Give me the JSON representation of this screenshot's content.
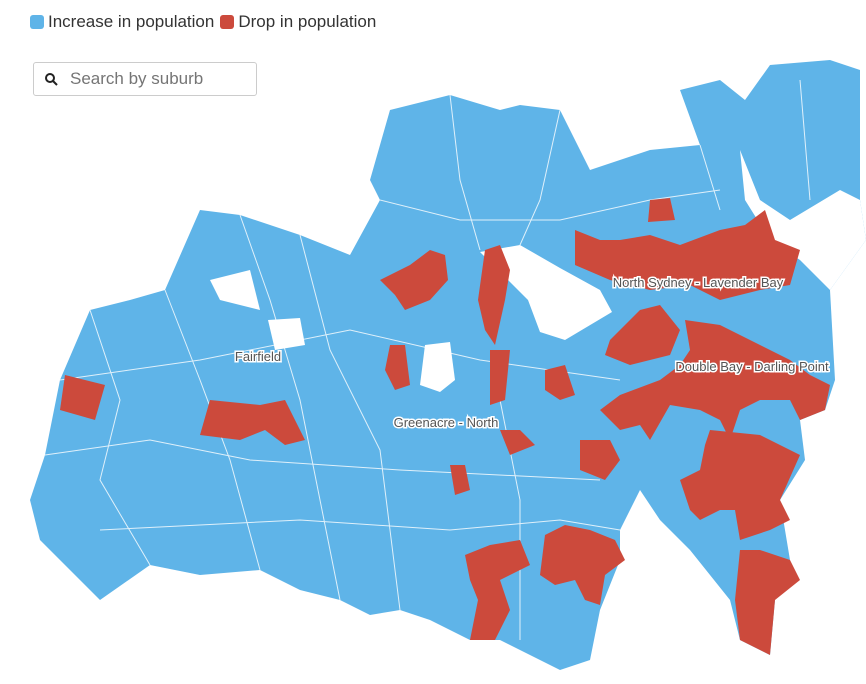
{
  "legend": [
    {
      "label": "Increase in population",
      "color": "#5fb4e8"
    },
    {
      "label": "Drop in population",
      "color": "#cc4a3c"
    }
  ],
  "search": {
    "placeholder": "Search by suburb"
  },
  "map": {
    "labels": [
      "North Sydney - Lavender Bay",
      "Fairfield",
      "Double Bay - Darling Point",
      "Greenacre - North"
    ]
  }
}
